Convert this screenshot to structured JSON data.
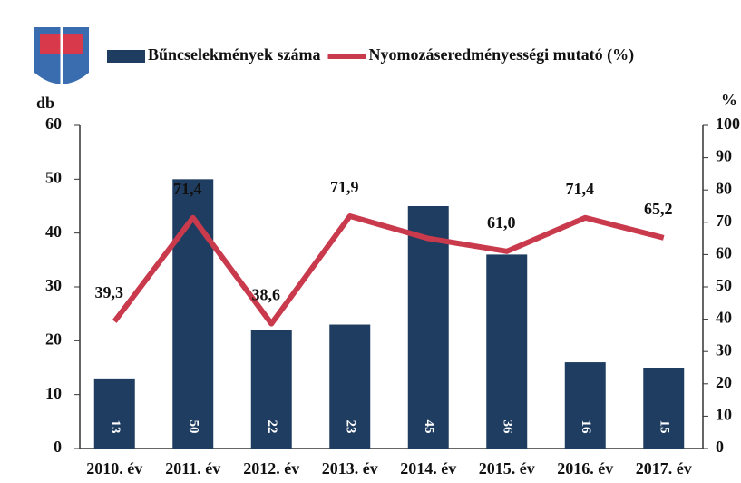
{
  "chart_data": {
    "type": "bar",
    "categories": [
      "2010. év",
      "2011. év",
      "2012. év",
      "2013. év",
      "2014. év",
      "2015. év",
      "2016. év",
      "2017. év"
    ],
    "series": [
      {
        "name": "Bűncselekmények száma",
        "type": "bar",
        "color": "#1f3d60",
        "values": [
          13,
          50,
          22,
          23,
          45,
          36,
          16,
          15
        ]
      },
      {
        "name": "Nyomozáseredményességi mutató (%)",
        "type": "line",
        "axis": "y2",
        "color": "#c93a4c",
        "values": [
          39.3,
          71.4,
          38.6,
          71.9,
          65,
          61.0,
          71.4,
          65.2
        ],
        "value_labels": [
          "39,3",
          "71,4",
          "38,6",
          "71,9",
          null,
          "61,0",
          "71,4",
          "65,2"
        ]
      }
    ],
    "y_label": "db",
    "y2_label": "%",
    "ylim": [
      0,
      60
    ],
    "yticks": [
      0,
      10,
      20,
      30,
      40,
      50,
      60
    ],
    "y2lim": [
      0,
      100
    ],
    "y2ticks": [
      0,
      10,
      20,
      30,
      40,
      50,
      60,
      70,
      80,
      90,
      100
    ]
  }
}
